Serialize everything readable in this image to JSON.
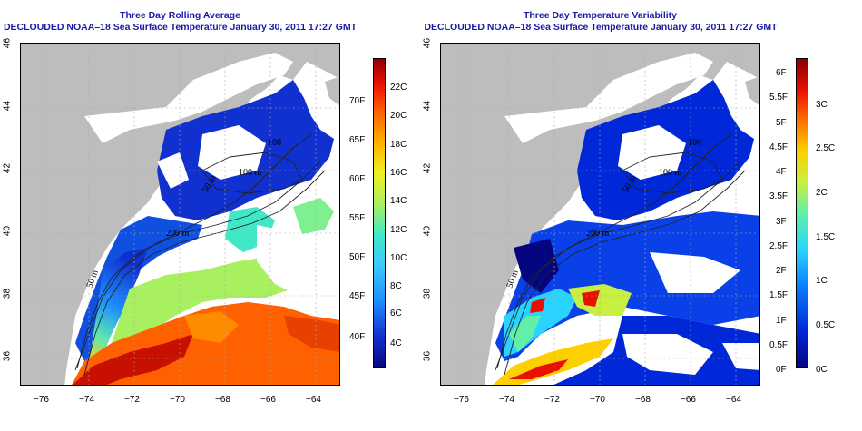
{
  "left_panel": {
    "title_line1": "Three Day Rolling Average",
    "title_line2": "DECLOUDED NOAA–18 Sea Surface Temperature January 30, 2011 17:27 GMT",
    "fahrenheit_labels": [
      "40F",
      "45F",
      "50F",
      "55F",
      "60F",
      "65F",
      "70F"
    ],
    "celsius_labels": [
      "4C",
      "6C",
      "8C",
      "10C",
      "12C",
      "14C",
      "16C",
      "18C",
      "20C",
      "22C"
    ]
  },
  "right_panel": {
    "title_line1": "Three Day Temperature Variability",
    "title_line2": "DECLOUDED NOAA–18 Sea Surface Temperature January 30, 2011 17:27 GMT",
    "fahrenheit_labels": [
      "0F",
      "0.5F",
      "1F",
      "1.5F",
      "2F",
      "2.5F",
      "3F",
      "3.5F",
      "4F",
      "4.5F",
      "5F",
      "5.5F",
      "6F"
    ],
    "celsius_labels": [
      "0C",
      "0.5C",
      "1C",
      "1.5C",
      "2C",
      "2.5C",
      "3C"
    ]
  },
  "map_axes": {
    "longitude_ticks": [
      "−76",
      "−74",
      "−72",
      "−70",
      "−68",
      "−66",
      "−64"
    ],
    "latitude_ticks": [
      "36",
      "38",
      "40",
      "42",
      "44",
      "46"
    ]
  },
  "contour_labels": {
    "left": [
      "200 m",
      "100 m",
      "50 m",
      "100",
      "50 m"
    ],
    "right": [
      "200 m",
      "100 m",
      "50 m",
      "100",
      "50 m"
    ]
  },
  "colors": {
    "title": "#1a1aa8",
    "land": "#bdbdbd",
    "sst_scale": [
      "#08087a",
      "#1030d0",
      "#1e90ff",
      "#3ec8ff",
      "#40e8c8",
      "#a8f060",
      "#f0f020",
      "#ffb000",
      "#ff6000",
      "#e81000",
      "#900000"
    ],
    "var_scale": [
      "#050580",
      "#0028d8",
      "#0a7cff",
      "#28d4ff",
      "#60f0a8",
      "#c8f040",
      "#ffd000",
      "#ff7000",
      "#e81000",
      "#8c0000"
    ]
  }
}
